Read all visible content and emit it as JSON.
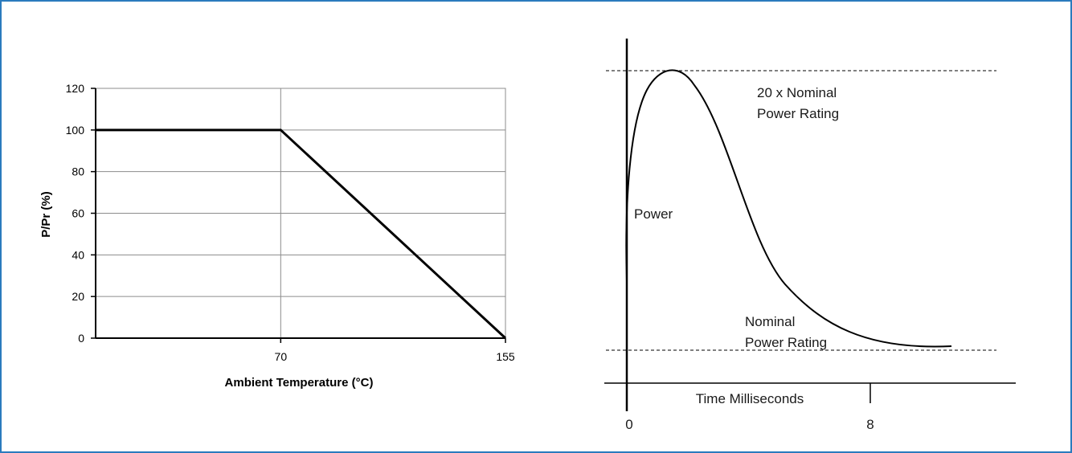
{
  "frame": {
    "border_color": "#2b7bbd"
  },
  "chart_data": [
    {
      "type": "line",
      "title": "",
      "xlabel": "Ambient Temperature (°C)",
      "ylabel": "P/Pr (%)",
      "xlim": [
        0,
        155
      ],
      "ylim": [
        0,
        120
      ],
      "x_ticks": [
        70,
        155
      ],
      "y_ticks": [
        0,
        20,
        40,
        60,
        80,
        100,
        120
      ],
      "grid": true,
      "series": [
        {
          "x": [
            0,
            70,
            155
          ],
          "y": [
            100,
            100,
            0
          ]
        }
      ]
    },
    {
      "type": "line",
      "title": "",
      "xlabel": "Time Milliseconds",
      "ylabel": "",
      "x_ticks": [
        "0",
        "8"
      ],
      "annotations": {
        "curve_label": "Power",
        "peak_line_1": "20 x Nominal",
        "peak_line_2": "Power Rating",
        "base_line_1": "Nominal",
        "base_line_2": "Power Rating"
      },
      "reference_lines": [
        "peak (dashed)",
        "nominal (dashed)"
      ],
      "grid": false
    }
  ]
}
